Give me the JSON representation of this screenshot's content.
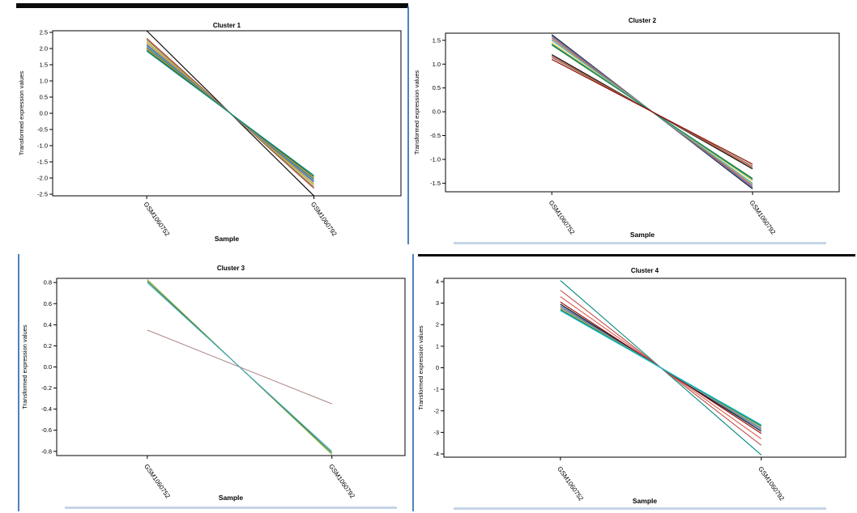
{
  "chart_data": [
    {
      "type": "line",
      "title": "Cluster 1",
      "xlabel": "Sample",
      "ylabel": "Transformed expression values",
      "categories": [
        "GSM1060752",
        "GSM1060792"
      ],
      "ylim": [
        -2.55,
        2.55
      ],
      "yticks": [
        "2.5",
        "2.0",
        "1.5",
        "1.0",
        "0.5",
        "0.0",
        "-0.5",
        "-1.0",
        "-1.5",
        "-2.0",
        "-2.5"
      ],
      "ytick_values": [
        2.5,
        2.0,
        1.5,
        1.0,
        0.5,
        0.0,
        -0.5,
        -1.0,
        -1.5,
        -2.0,
        -2.5
      ],
      "series": [
        {
          "color": "#000000",
          "values": [
            2.55,
            -2.55
          ]
        },
        {
          "color": "#c0504d",
          "values": [
            2.32,
            -2.32
          ]
        },
        {
          "color": "#8d6e3f",
          "values": [
            2.28,
            -2.28
          ]
        },
        {
          "color": "#9bbb59",
          "values": [
            2.22,
            -2.22
          ]
        },
        {
          "color": "#e0a020",
          "values": [
            2.18,
            -2.18
          ]
        },
        {
          "color": "#4f81bd",
          "values": [
            2.13,
            -2.13
          ]
        },
        {
          "color": "#8064a2",
          "values": [
            2.1,
            -2.1
          ]
        },
        {
          "color": "#4bacc6",
          "values": [
            2.07,
            -2.07
          ]
        },
        {
          "color": "#2e7d32",
          "values": [
            2.03,
            -2.03
          ]
        },
        {
          "color": "#f79646",
          "values": [
            2.0,
            -2.0
          ]
        },
        {
          "color": "#1a6b3c",
          "values": [
            1.96,
            -1.96
          ]
        },
        {
          "color": "#00897b",
          "values": [
            1.92,
            -1.92
          ]
        }
      ]
    },
    {
      "type": "line",
      "title": "Cluster 2",
      "xlabel": "Sample",
      "ylabel": "Transformed expression values",
      "categories": [
        "GSM1060752",
        "GSM1060792"
      ],
      "ylim": [
        -1.68,
        1.65
      ],
      "yticks": [
        "1.5",
        "1.0",
        "0.5",
        "0.0",
        "-0.5",
        "-1.0",
        "-1.5"
      ],
      "ytick_values": [
        1.5,
        1.0,
        0.5,
        0.0,
        -0.5,
        -1.0,
        -1.5
      ],
      "series": [
        {
          "color": "#000000",
          "values": [
            1.62,
            -1.62
          ]
        },
        {
          "color": "#4f81bd",
          "values": [
            1.6,
            -1.6
          ]
        },
        {
          "color": "#8064a2",
          "values": [
            1.58,
            -1.58
          ]
        },
        {
          "color": "#c0504d",
          "values": [
            1.55,
            -1.55
          ]
        },
        {
          "color": "#9bbb59",
          "values": [
            1.52,
            -1.52
          ]
        },
        {
          "color": "#4bacc6",
          "values": [
            1.5,
            -1.5
          ]
        },
        {
          "color": "#e0c020",
          "values": [
            1.45,
            -1.45
          ]
        },
        {
          "color": "#2e7d32",
          "values": [
            1.4,
            -1.4
          ]
        },
        {
          "color": "#00897b",
          "values": [
            1.42,
            -1.42
          ]
        },
        {
          "color": "#000000",
          "values": [
            1.2,
            -1.2
          ]
        },
        {
          "color": "#c0504d",
          "values": [
            1.17,
            -1.17
          ]
        },
        {
          "color": "#8d6e3f",
          "values": [
            1.14,
            -1.14
          ]
        },
        {
          "color": "#8b0000",
          "values": [
            1.1,
            -1.1
          ]
        }
      ]
    },
    {
      "type": "line",
      "title": "Cluster 3",
      "xlabel": "Sample",
      "ylabel": "Transformed expression values",
      "categories": [
        "GSM1060752",
        "GSM1060792"
      ],
      "ylim": [
        -0.84,
        0.84
      ],
      "yticks": [
        "0.8",
        "0.6",
        "0.4",
        "0.2",
        "0.0",
        "-0.2",
        "-0.4",
        "-0.6",
        "-0.8"
      ],
      "ytick_values": [
        0.8,
        0.6,
        0.4,
        0.2,
        0.0,
        -0.2,
        -0.4,
        -0.6,
        -0.8
      ],
      "series": [
        {
          "color": "#b08a8a",
          "values": [
            0.35,
            -0.35
          ]
        },
        {
          "color": "#9bbb59",
          "values": [
            0.83,
            -0.83
          ]
        },
        {
          "color": "#2e7d32",
          "values": [
            0.815,
            -0.815
          ]
        },
        {
          "color": "#4bacc6",
          "values": [
            0.8,
            -0.8
          ]
        }
      ]
    },
    {
      "type": "line",
      "title": "Cluster 4",
      "xlabel": "Sample",
      "ylabel": "Transformed expression values",
      "categories": [
        "GSM1060752",
        "GSM1060792"
      ],
      "ylim": [
        -4.15,
        4.15
      ],
      "yticks": [
        "4",
        "3",
        "2",
        "1",
        "0",
        "-1",
        "-2",
        "-3",
        "-4"
      ],
      "ytick_values": [
        4,
        3,
        2,
        1,
        0,
        -1,
        -2,
        -3,
        -4
      ],
      "series": [
        {
          "color": "#00897b",
          "values": [
            4.05,
            -4.05
          ]
        },
        {
          "color": "#c0504d",
          "values": [
            3.6,
            -3.6
          ]
        },
        {
          "color": "#e06050",
          "values": [
            3.3,
            -3.3
          ]
        },
        {
          "color": "#8b0000",
          "values": [
            3.05,
            -3.05
          ]
        },
        {
          "color": "#000000",
          "values": [
            2.95,
            -2.95
          ]
        },
        {
          "color": "#4f81bd",
          "values": [
            2.88,
            -2.88
          ]
        },
        {
          "color": "#8064a2",
          "values": [
            2.82,
            -2.82
          ]
        },
        {
          "color": "#9bbb59",
          "values": [
            2.78,
            -2.78
          ]
        },
        {
          "color": "#4bacc6",
          "values": [
            2.72,
            -2.72
          ]
        },
        {
          "color": "#2e7d32",
          "values": [
            2.7,
            -2.7
          ]
        },
        {
          "color": "#00bcd4",
          "values": [
            2.65,
            -2.65
          ]
        }
      ]
    }
  ]
}
